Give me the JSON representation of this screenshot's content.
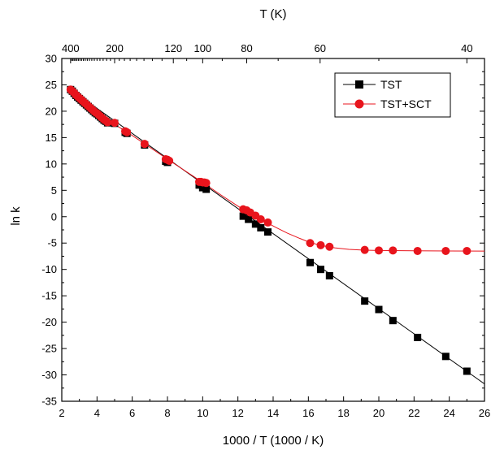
{
  "chart_data": {
    "type": "scatter",
    "xlabel": "1000 / T (1000 / K)",
    "ylabel": "ln k",
    "top_xlabel": "T (K)",
    "xlim": [
      2,
      26
    ],
    "ylim": [
      -35,
      30
    ],
    "x_ticks": [
      2,
      4,
      6,
      8,
      10,
      12,
      14,
      16,
      18,
      20,
      22,
      24,
      26
    ],
    "y_ticks": [
      30,
      25,
      20,
      15,
      10,
      5,
      0,
      -5,
      -10,
      -15,
      -20,
      -25,
      -30,
      -35
    ],
    "top_ticks": [
      {
        "T": 400,
        "label": "400"
      },
      {
        "T": 200,
        "label": "200"
      },
      {
        "T": 120,
        "label": "120"
      },
      {
        "T": 100,
        "label": "100"
      },
      {
        "T": 80,
        "label": "80"
      },
      {
        "T": 60,
        "label": "60"
      },
      {
        "T": 40,
        "label": "40"
      }
    ],
    "legend_position": "top-right",
    "series": [
      {
        "name": "TST",
        "color": "#000000",
        "marker": "square",
        "x": [
          2.5,
          2.6,
          2.7,
          2.8,
          2.9,
          3.0,
          3.1,
          3.2,
          3.3,
          3.4,
          3.5,
          3.6,
          3.7,
          3.8,
          3.9,
          4.0,
          4.1,
          4.2,
          4.3,
          4.4,
          4.5,
          4.6,
          5.0,
          5.6,
          5.7,
          6.7,
          7.9,
          8.0,
          9.8,
          10.0,
          10.2,
          12.3,
          12.6,
          13.0,
          13.3,
          13.7,
          16.1,
          16.7,
          17.2,
          19.2,
          20.0,
          20.8,
          22.2,
          23.8,
          25.0
        ],
        "y": [
          24.1,
          23.8,
          23.4,
          23.0,
          22.7,
          22.4,
          22.1,
          21.8,
          21.5,
          21.2,
          20.9,
          20.6,
          20.3,
          20.0,
          19.7,
          19.5,
          19.2,
          18.9,
          18.6,
          18.3,
          18.1,
          17.8,
          17.7,
          16.0,
          15.8,
          13.6,
          10.5,
          10.3,
          6.0,
          5.5,
          5.2,
          0.1,
          -0.5,
          -1.4,
          -2.1,
          -2.9,
          -8.7,
          -10.0,
          -11.2,
          -16.0,
          -17.6,
          -19.7,
          -22.9,
          -26.5,
          -29.3
        ]
      },
      {
        "name": "TST+SCT",
        "color": "#e8141c",
        "marker": "circle",
        "x": [
          2.5,
          2.6,
          2.7,
          2.8,
          2.9,
          3.0,
          3.1,
          3.2,
          3.3,
          3.4,
          3.5,
          3.6,
          3.7,
          3.8,
          3.9,
          4.0,
          4.1,
          4.2,
          4.3,
          4.4,
          4.5,
          4.6,
          5.0,
          5.6,
          5.7,
          6.7,
          7.9,
          8.0,
          8.1,
          9.8,
          9.9,
          10.0,
          10.1,
          10.2,
          12.3,
          12.5,
          12.7,
          13.0,
          13.3,
          13.7,
          16.1,
          16.7,
          17.2,
          19.2,
          20.0,
          20.8,
          22.2,
          23.8,
          25.0
        ],
        "y": [
          24.1,
          23.8,
          23.5,
          23.1,
          22.8,
          22.5,
          22.2,
          21.9,
          21.6,
          21.3,
          21.0,
          20.7,
          20.4,
          20.1,
          19.8,
          19.6,
          19.3,
          19.0,
          18.7,
          18.4,
          18.2,
          17.9,
          17.8,
          16.2,
          16.0,
          13.8,
          10.9,
          10.8,
          10.6,
          6.6,
          6.6,
          6.5,
          6.5,
          6.4,
          1.4,
          1.2,
          0.8,
          0.2,
          -0.5,
          -1.1,
          -5.0,
          -5.4,
          -5.7,
          -6.3,
          -6.4,
          -6.4,
          -6.5,
          -6.5,
          -6.5
        ]
      }
    ],
    "fit_lines": [
      {
        "series": "TST",
        "x": [
          2.5,
          26
        ],
        "y": [
          24.1,
          -31.7
        ]
      },
      {
        "series": "TST+SCT",
        "x": [
          2.5,
          4,
          6,
          8,
          10,
          11,
          12,
          12.8,
          13.5,
          14.2,
          14.8,
          15.5,
          16.1,
          16.8,
          17.5,
          18.3,
          19.2,
          20,
          22,
          24,
          26
        ],
        "y": [
          24.1,
          19.6,
          15.4,
          10.9,
          6.5,
          4.2,
          2.0,
          0.4,
          -0.9,
          -2.1,
          -3.1,
          -4.1,
          -4.9,
          -5.5,
          -5.9,
          -6.2,
          -6.35,
          -6.42,
          -6.48,
          -6.5,
          -6.52
        ]
      }
    ]
  }
}
